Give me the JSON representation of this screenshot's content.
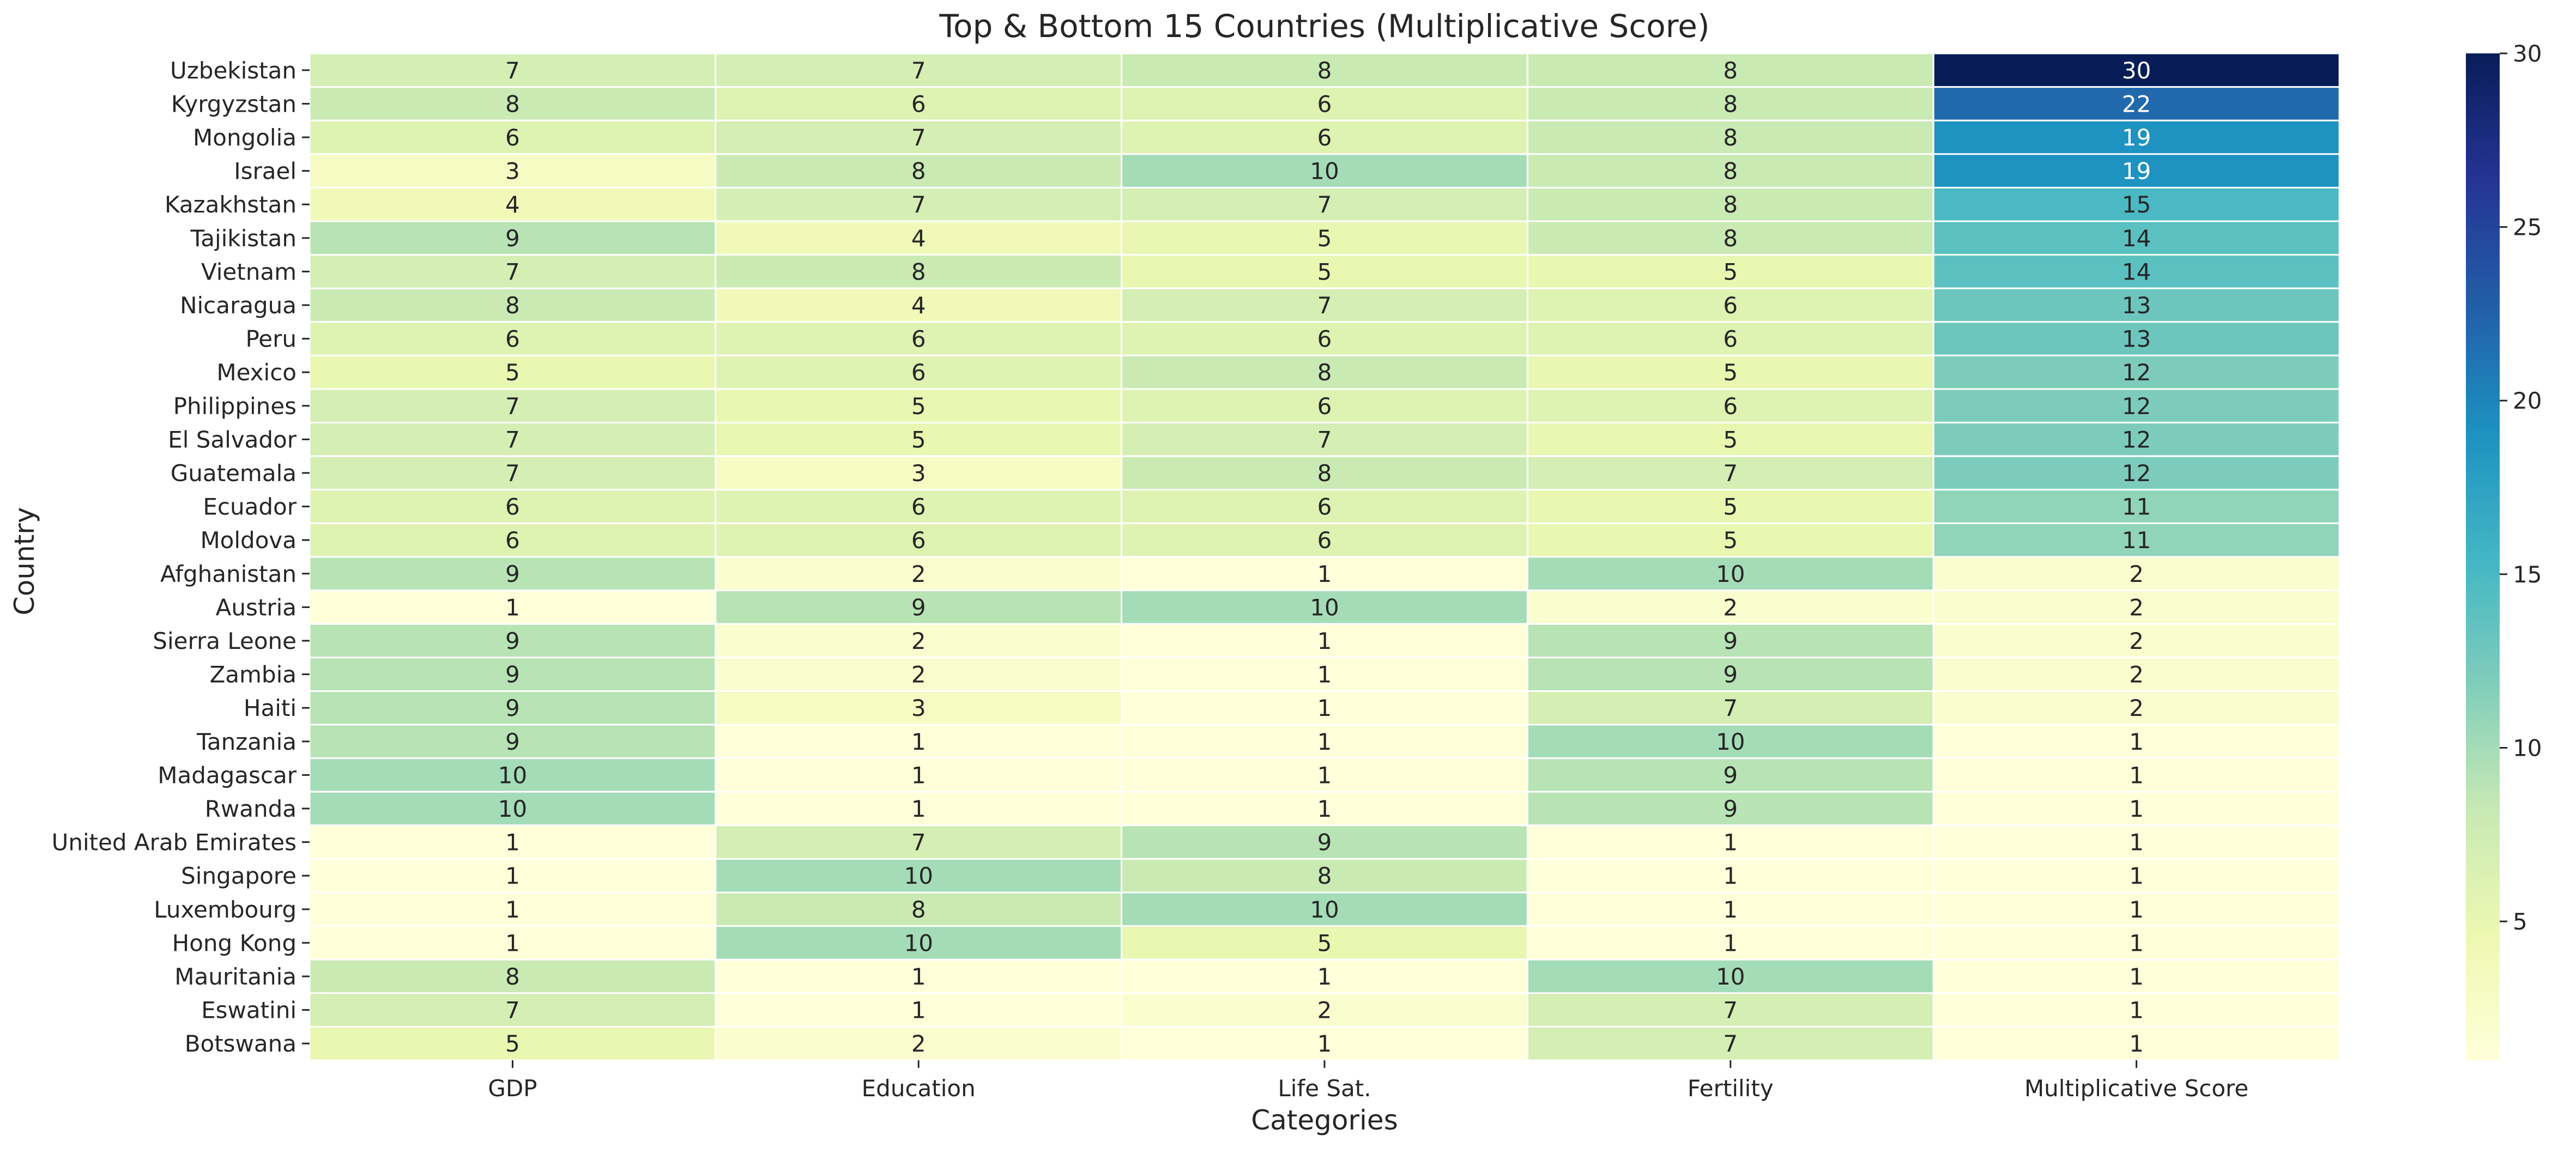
{
  "chart_data": {
    "type": "heatmap",
    "title": "Top & Bottom 15 Countries (Multiplicative Score)",
    "xlabel": "Categories",
    "ylabel": "Country",
    "columns": [
      "GDP",
      "Education",
      "Life Sat.",
      "Fertility",
      "Multiplicative Score"
    ],
    "rows": [
      {
        "country": "Uzbekistan",
        "values": [
          7,
          7,
          8,
          8,
          30
        ]
      },
      {
        "country": "Kyrgyzstan",
        "values": [
          8,
          6,
          6,
          8,
          22
        ]
      },
      {
        "country": "Mongolia",
        "values": [
          6,
          7,
          6,
          8,
          19
        ]
      },
      {
        "country": "Israel",
        "values": [
          3,
          8,
          10,
          8,
          19
        ]
      },
      {
        "country": "Kazakhstan",
        "values": [
          4,
          7,
          7,
          8,
          15
        ]
      },
      {
        "country": "Tajikistan",
        "values": [
          9,
          4,
          5,
          8,
          14
        ]
      },
      {
        "country": "Vietnam",
        "values": [
          7,
          8,
          5,
          5,
          14
        ]
      },
      {
        "country": "Nicaragua",
        "values": [
          8,
          4,
          7,
          6,
          13
        ]
      },
      {
        "country": "Peru",
        "values": [
          6,
          6,
          6,
          6,
          13
        ]
      },
      {
        "country": "Mexico",
        "values": [
          5,
          6,
          8,
          5,
          12
        ]
      },
      {
        "country": "Philippines",
        "values": [
          7,
          5,
          6,
          6,
          12
        ]
      },
      {
        "country": "El Salvador",
        "values": [
          7,
          5,
          7,
          5,
          12
        ]
      },
      {
        "country": "Guatemala",
        "values": [
          7,
          3,
          8,
          7,
          12
        ]
      },
      {
        "country": "Ecuador",
        "values": [
          6,
          6,
          6,
          5,
          11
        ]
      },
      {
        "country": "Moldova",
        "values": [
          6,
          6,
          6,
          5,
          11
        ]
      },
      {
        "country": "Afghanistan",
        "values": [
          9,
          2,
          1,
          10,
          2
        ]
      },
      {
        "country": "Austria",
        "values": [
          1,
          9,
          10,
          2,
          2
        ]
      },
      {
        "country": "Sierra Leone",
        "values": [
          9,
          2,
          1,
          9,
          2
        ]
      },
      {
        "country": "Zambia",
        "values": [
          9,
          2,
          1,
          9,
          2
        ]
      },
      {
        "country": "Haiti",
        "values": [
          9,
          3,
          1,
          7,
          2
        ]
      },
      {
        "country": "Tanzania",
        "values": [
          9,
          1,
          1,
          10,
          1
        ]
      },
      {
        "country": "Madagascar",
        "values": [
          10,
          1,
          1,
          9,
          1
        ]
      },
      {
        "country": "Rwanda",
        "values": [
          10,
          1,
          1,
          9,
          1
        ]
      },
      {
        "country": "United Arab Emirates",
        "values": [
          1,
          7,
          9,
          1,
          1
        ]
      },
      {
        "country": "Singapore",
        "values": [
          1,
          10,
          8,
          1,
          1
        ]
      },
      {
        "country": "Luxembourg",
        "values": [
          1,
          8,
          10,
          1,
          1
        ]
      },
      {
        "country": "Hong Kong",
        "values": [
          1,
          10,
          5,
          1,
          1
        ]
      },
      {
        "country": "Mauritania",
        "values": [
          8,
          1,
          1,
          10,
          1
        ]
      },
      {
        "country": "Eswatini",
        "values": [
          7,
          1,
          2,
          7,
          1
        ]
      },
      {
        "country": "Botswana",
        "values": [
          5,
          2,
          1,
          7,
          1
        ]
      }
    ],
    "colorbar": {
      "colormap": "YlGnBu",
      "range": [
        1,
        30
      ],
      "ticks": [
        5,
        10,
        15,
        20,
        25,
        30
      ]
    },
    "colors": {
      "cell_border": "#ffffff",
      "text_dark": "#262626",
      "text_light": "#ffffff",
      "axis": "#262626"
    }
  }
}
